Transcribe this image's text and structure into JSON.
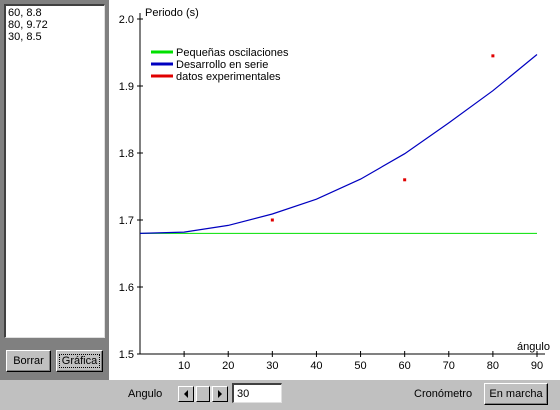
{
  "data_list": [
    "60, 8.8",
    "80, 9.72",
    "30, 8.5"
  ],
  "buttons": {
    "borrar": "Borrar",
    "grafica": "Gráfica",
    "marcha": "En marcha"
  },
  "controls": {
    "angle_label": "Angulo",
    "angle_value": "30",
    "crono_label": "Cronómetro"
  },
  "colors": {
    "small_osc": "#00e000",
    "series": "#0000c0",
    "experimental": "#e00000"
  },
  "chart_data": {
    "type": "line",
    "ylabel": "Periodo (s)",
    "xlabel": "ángulo",
    "xlim": [
      0,
      90
    ],
    "ylim": [
      1.5,
      2.0
    ],
    "x_ticks": [
      10,
      20,
      30,
      40,
      50,
      60,
      70,
      80,
      90
    ],
    "y_ticks": [
      "1.5",
      "1.6",
      "1.7",
      "1.8",
      "1.9",
      "2.0"
    ],
    "legend": [
      {
        "name": "Pequeñas oscilaciones",
        "color": "#00e000"
      },
      {
        "name": "Desarrollo en serie",
        "color": "#0000c0"
      },
      {
        "name": "datos experimentales",
        "color": "#e00000"
      }
    ],
    "legend_position": "top-left",
    "series": [
      {
        "name": "Pequeñas oscilaciones",
        "x": [
          0,
          90
        ],
        "y": [
          1.68,
          1.68
        ]
      },
      {
        "name": "Desarrollo en serie",
        "x": [
          0,
          10,
          20,
          30,
          40,
          50,
          60,
          70,
          80,
          90
        ],
        "y": [
          1.68,
          1.682,
          1.692,
          1.709,
          1.731,
          1.761,
          1.799,
          1.845,
          1.893,
          1.947
        ]
      },
      {
        "name": "datos experimentales",
        "x": [
          30,
          60,
          80
        ],
        "y": [
          1.7,
          1.76,
          1.945
        ]
      }
    ]
  }
}
